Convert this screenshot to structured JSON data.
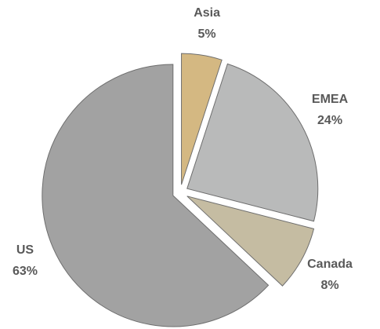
{
  "chart_data": {
    "type": "pie",
    "categories": [
      "Asia",
      "EMEA",
      "Canada",
      "US"
    ],
    "values": [
      5,
      24,
      8,
      63
    ],
    "value_labels": [
      "5%",
      "24%",
      "8%",
      "63%"
    ],
    "colors": [
      "#d4b882",
      "#b9baba",
      "#c5bca2",
      "#a2a2a2"
    ]
  }
}
